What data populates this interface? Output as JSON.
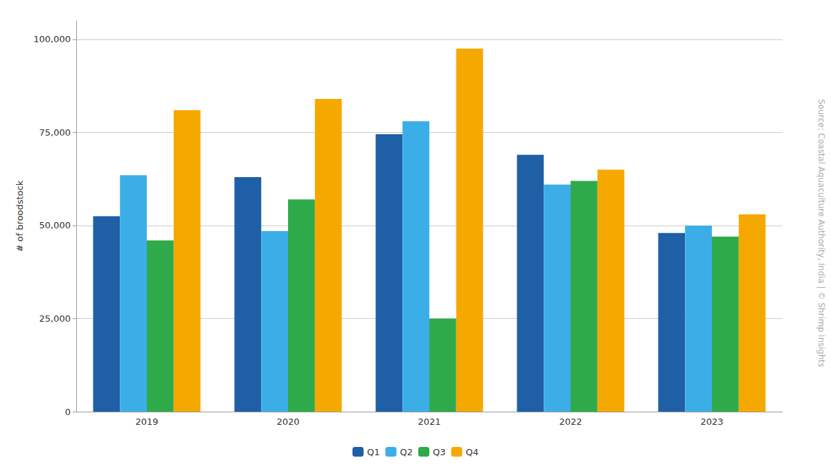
{
  "chart_data": {
    "type": "bar",
    "categories": [
      "2019",
      "2020",
      "2021",
      "2022",
      "2023"
    ],
    "series": [
      {
        "name": "Q1",
        "color": "#1F5FA6",
        "values": [
          52500,
          63000,
          74500,
          69000,
          48000
        ]
      },
      {
        "name": "Q2",
        "color": "#3BAEE8",
        "values": [
          63500,
          48500,
          78000,
          61000,
          50000
        ]
      },
      {
        "name": "Q3",
        "color": "#2EAA4A",
        "values": [
          46000,
          57000,
          25000,
          62000,
          47000
        ]
      },
      {
        "name": "Q4",
        "color": "#F5A800",
        "values": [
          81000,
          84000,
          97500,
          65000,
          53000
        ]
      }
    ],
    "ylabel": "# of broodstock",
    "ylim": [
      0,
      105000
    ],
    "yticks": [
      0,
      {
        "value": 25000,
        "label": "25,000"
      },
      {
        "value": 50000,
        "label": "50,000"
      },
      {
        "value": 75000,
        "label": "75,000"
      },
      {
        "value": 100000,
        "label": "100,000"
      }
    ],
    "grid": true,
    "legend": "bottom",
    "annotations": [
      "Source: Coastal Aquaculture Authority, India | © Shrimp Insights"
    ]
  }
}
